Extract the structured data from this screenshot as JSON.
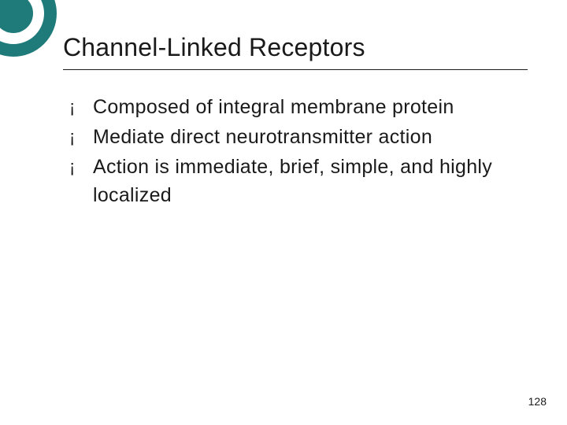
{
  "theme": {
    "accent_color": "#1f7a7a",
    "background_color": "#ffffff",
    "text_color": "#1a1a1a",
    "divider_color": "#1a1a1a",
    "title_fontsize": 32,
    "body_fontsize": 25,
    "body_lineheight": 36,
    "bullet_glyph": "¡",
    "circle_outer_diameter": 110,
    "circle_outer_thickness": 16,
    "circle_inner_diameter": 50
  },
  "slide": {
    "title": "Channel-Linked Receptors",
    "bullets": [
      "Composed of integral membrane protein",
      "Mediate direct neurotransmitter action",
      "Action is immediate, brief, simple, and highly localized"
    ],
    "page_number": "128"
  }
}
